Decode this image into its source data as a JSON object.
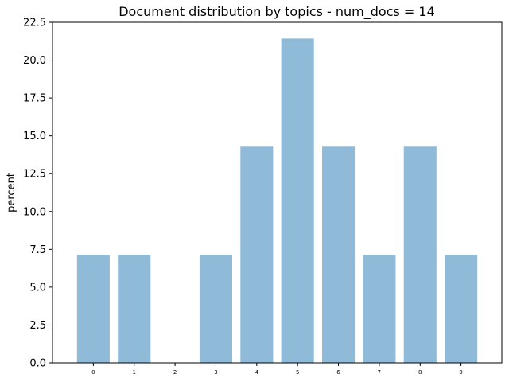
{
  "chart_data": {
    "type": "bar",
    "title": "Document distribution by topics - num_docs = 14",
    "xlabel": "",
    "ylabel": "percent",
    "categories": [
      "0",
      "1",
      "2",
      "3",
      "4",
      "5",
      "6",
      "7",
      "8",
      "9"
    ],
    "values": [
      7.142857,
      7.142857,
      0,
      7.142857,
      14.285714,
      21.428571,
      14.285714,
      7.142857,
      14.285714,
      7.142857
    ],
    "ylim": [
      0,
      22.5
    ],
    "y_ticks": [
      "0.0",
      "2.5",
      "5.0",
      "7.5",
      "10.0",
      "12.5",
      "15.0",
      "17.5",
      "20.0",
      "22.5"
    ],
    "grid": false,
    "bar_color": "#8fbbd9"
  }
}
